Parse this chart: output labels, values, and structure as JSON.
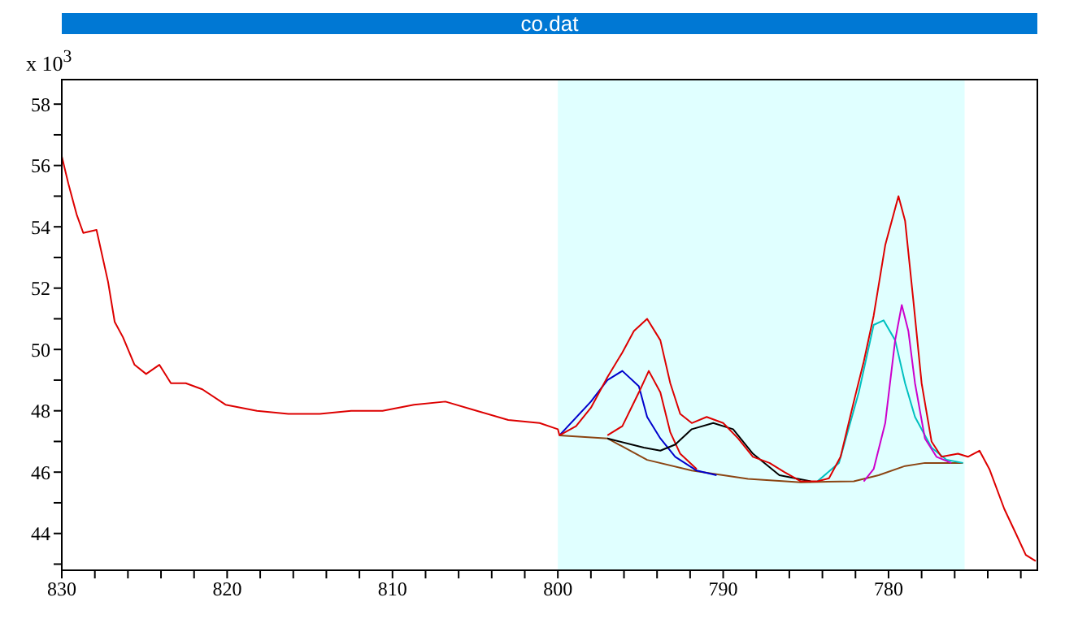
{
  "chart_data": {
    "type": "line",
    "title": "co.dat",
    "ylabel": "x 10$^{3}$",
    "xlim": [
      830,
      771
    ],
    "ylim": [
      42.8,
      58.8
    ],
    "xticks": [
      830,
      {
        "value": 828,
        "label": null
      },
      {
        "value": 826,
        "label": null
      },
      {
        "value": 824,
        "label": null
      },
      {
        "value": 822,
        "label": null
      },
      820,
      {
        "value": 818,
        "label": null
      },
      {
        "value": 816,
        "label": null
      },
      {
        "value": 814,
        "label": null
      },
      {
        "value": 812,
        "label": null
      },
      810,
      {
        "value": 808,
        "label": null
      },
      {
        "value": 806,
        "label": null
      },
      {
        "value": 804,
        "label": null
      },
      {
        "value": 802,
        "label": null
      },
      800,
      {
        "value": 798,
        "label": null
      },
      {
        "value": 796,
        "label": null
      },
      {
        "value": 794,
        "label": null
      },
      {
        "value": 792,
        "label": null
      },
      790,
      {
        "value": 788,
        "label": null
      },
      {
        "value": 786,
        "label": null
      },
      {
        "value": 784,
        "label": null
      },
      {
        "value": 782,
        "label": null
      },
      780,
      {
        "value": 778,
        "label": null
      },
      {
        "value": 776,
        "label": null
      },
      {
        "value": 774,
        "label": null
      },
      {
        "value": 772,
        "label": null
      }
    ],
    "yticks": [
      {
        "value": 43,
        "label": null
      },
      44,
      {
        "value": 45,
        "label": null
      },
      46,
      {
        "value": 47,
        "label": null
      },
      48,
      {
        "value": 49,
        "label": null
      },
      50,
      {
        "value": 51,
        "label": null
      },
      52,
      {
        "value": 53,
        "label": null
      },
      54,
      {
        "value": 55,
        "label": null
      },
      56,
      {
        "value": 57,
        "label": null
      },
      58
    ],
    "grid": false,
    "marker": "none",
    "line_style": "solid",
    "bands": [
      {
        "axis": "x",
        "from": 800,
        "to": 775.4,
        "color": "#e0ffff"
      }
    ],
    "series": [
      {
        "color": "#8b4513",
        "x": [
          799.9,
          797.0,
          794.6,
          791.9,
          788.5,
          785.3,
          782.1,
          780.6,
          779.0,
          777.8,
          775.5
        ],
        "values": [
          47.2,
          47.1,
          46.4,
          46.05,
          45.78,
          45.67,
          45.7,
          45.9,
          46.2,
          46.3,
          46.3
        ]
      },
      {
        "color": "#0000cc",
        "x": [
          799.9,
          798.0,
          797.0,
          796.1,
          795.1,
          794.6,
          793.8,
          792.9,
          791.6,
          790.4
        ],
        "values": [
          47.2,
          48.3,
          49.0,
          49.3,
          48.8,
          47.8,
          47.1,
          46.5,
          46.05,
          45.9
        ]
      },
      {
        "color": "#dd0000",
        "x": [
          797.0,
          796.1,
          795.1,
          794.5,
          793.8,
          793.2,
          792.6,
          791.6
        ],
        "values": [
          47.2,
          47.5,
          48.6,
          49.3,
          48.6,
          47.3,
          46.6,
          46.1
        ]
      },
      {
        "color": "#000000",
        "x": [
          797.0,
          794.8,
          793.8,
          792.9,
          791.9,
          790.6,
          789.4,
          788.2,
          786.6,
          784.7
        ],
        "values": [
          47.1,
          46.8,
          46.7,
          46.9,
          47.4,
          47.6,
          47.4,
          46.6,
          45.9,
          45.7
        ]
      },
      {
        "color": "#00c0c0",
        "x": [
          784.3,
          783.0,
          781.8,
          780.9,
          780.3,
          779.6,
          779.0,
          778.4,
          777.4,
          776.5,
          775.5
        ],
        "values": [
          45.7,
          46.3,
          48.6,
          50.8,
          50.95,
          50.3,
          48.9,
          47.8,
          46.8,
          46.4,
          46.3
        ]
      },
      {
        "color": "#cc00cc",
        "x": [
          781.5,
          780.9,
          780.2,
          779.6,
          779.2,
          778.8,
          778.4,
          777.8,
          777.1,
          776.2
        ],
        "values": [
          45.7,
          46.1,
          47.6,
          50.3,
          51.45,
          50.6,
          48.9,
          47.1,
          46.5,
          46.3
        ]
      },
      {
        "color": "#dd0000",
        "x": [
          830,
          829.6,
          829.1,
          828.7,
          827.9,
          827.2,
          826.8,
          826.3,
          825.6,
          824.9,
          824.1,
          823.4,
          822.5,
          821.5,
          820.1,
          818.2,
          816.3,
          814.4,
          812.5,
          810.6,
          808.7,
          806.8,
          804.9,
          803.0,
          801.1,
          800.0,
          799.9,
          798.9,
          798.0,
          797.0,
          796.1,
          795.4,
          794.6,
          793.8,
          793.2,
          792.6,
          791.9,
          791.0,
          790.0,
          789.1,
          788.2,
          787.2,
          786.3,
          785.3,
          784.3,
          783.6,
          782.9,
          782.1,
          781.5,
          780.9,
          780.2,
          779.4,
          779.0,
          778.5,
          778.0,
          777.4,
          776.8,
          775.8,
          775.2,
          774.5,
          773.9,
          773.0,
          772.3,
          771.7,
          771.1
        ],
        "values": [
          56.3,
          55.4,
          54.4,
          53.8,
          53.9,
          52.2,
          50.9,
          50.4,
          49.5,
          49.2,
          49.5,
          48.9,
          48.9,
          48.7,
          48.2,
          48.0,
          47.9,
          47.9,
          48.0,
          48.0,
          48.2,
          48.3,
          48.0,
          47.7,
          47.6,
          47.4,
          47.2,
          47.5,
          48.1,
          49.1,
          49.9,
          50.6,
          51.0,
          50.3,
          48.9,
          47.9,
          47.6,
          47.8,
          47.6,
          47.1,
          46.5,
          46.3,
          46.0,
          45.7,
          45.7,
          45.8,
          46.5,
          48.3,
          49.6,
          51.1,
          53.4,
          55.0,
          54.2,
          51.6,
          48.9,
          47.0,
          46.5,
          46.6,
          46.5,
          46.7,
          46.1,
          44.8,
          44.0,
          43.3,
          43.1
        ]
      }
    ]
  }
}
